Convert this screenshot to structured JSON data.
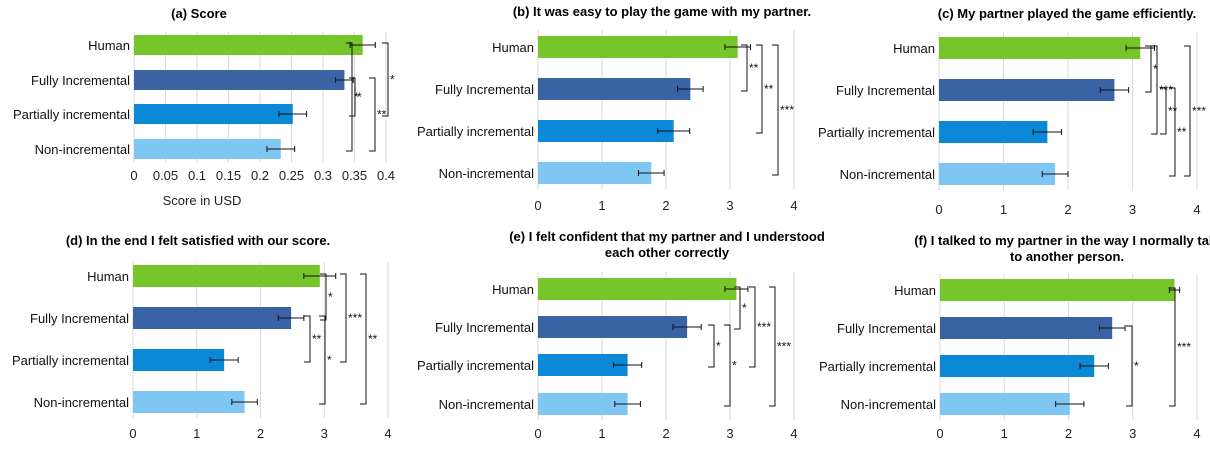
{
  "colors": {
    "Human": "#76c52b",
    "Fully Incremental": "#3a63a5",
    "Partially incremental": "#0b88d6",
    "Non-incremental": "#7fc6f3"
  },
  "chart_data": [
    {
      "type": "bar",
      "orientation": "horizontal",
      "title_lines": [
        "(a) Score"
      ],
      "xlabel": "Score in USD",
      "ylabel": "",
      "xlim": [
        0,
        0.4
      ],
      "ticks": [
        "0",
        "0.05",
        "0.1",
        "0.15",
        "0.2",
        "0.25",
        "0.3",
        "0.35",
        "0.4"
      ],
      "categories": [
        "Human",
        "Fully Incremental",
        "Partially incremental",
        "Non-incremental"
      ],
      "values": [
        0.363,
        0.334,
        0.252,
        0.233
      ],
      "errors": [
        0.02,
        0.014,
        0.022,
        0.022
      ],
      "significance": [
        {
          "between": [
            "Fully Incremental",
            "Partially incremental"
          ],
          "label": "*"
        },
        {
          "between": [
            "Fully Incremental",
            "Non-incremental"
          ],
          "label": "**"
        },
        {
          "between": [
            "Human",
            "Partially incremental"
          ],
          "label": "*"
        },
        {
          "between": [
            "Human",
            "Non-incremental"
          ],
          "label": "*"
        }
      ]
    },
    {
      "type": "bar",
      "orientation": "horizontal",
      "title_lines": [
        "(b) It was easy to play the game with my partner."
      ],
      "xlabel": "",
      "ylabel": "",
      "xlim": [
        0,
        4
      ],
      "ticks": [
        "0",
        "1",
        "2",
        "3",
        "4"
      ],
      "categories": [
        "Human",
        "Fully Incremental",
        "Partially incremental",
        "Non-incremental"
      ],
      "values": [
        3.12,
        2.38,
        2.12,
        1.77
      ],
      "errors": [
        0.2,
        0.2,
        0.25,
        0.2
      ],
      "significance": [
        {
          "between": [
            "Human",
            "Fully Incremental"
          ],
          "label": "**"
        },
        {
          "between": [
            "Human",
            "Partially incremental"
          ],
          "label": "**"
        },
        {
          "between": [
            "Human",
            "Non-incremental"
          ],
          "label": "***"
        }
      ]
    },
    {
      "type": "bar",
      "orientation": "horizontal",
      "title_lines": [
        "(c) My partner played the game efficiently."
      ],
      "xlabel": "",
      "ylabel": "",
      "xlim": [
        0,
        4
      ],
      "ticks": [
        "0",
        "1",
        "2",
        "3",
        "4"
      ],
      "categories": [
        "Human",
        "Fully Incremental",
        "Partially incremental",
        "Non-incremental"
      ],
      "values": [
        3.12,
        2.72,
        1.68,
        1.8
      ],
      "errors": [
        0.22,
        0.22,
        0.22,
        0.2
      ],
      "significance": [
        {
          "between": [
            "Human",
            "Fully Incremental"
          ],
          "label": "*"
        },
        {
          "between": [
            "Fully Incremental",
            "Partially incremental"
          ],
          "label": "**"
        },
        {
          "between": [
            "Fully Incremental",
            "Non-incremental"
          ],
          "label": "**"
        },
        {
          "between": [
            "Human",
            "Partially incremental"
          ],
          "label": "***"
        },
        {
          "between": [
            "Human",
            "Non-incremental"
          ],
          "label": "***"
        }
      ]
    },
    {
      "type": "bar",
      "orientation": "horizontal",
      "title_lines": [
        "(d) In the end I felt satisfied with our score."
      ],
      "xlabel": "",
      "ylabel": "",
      "xlim": [
        0,
        4
      ],
      "ticks": [
        "0",
        "1",
        "2",
        "3",
        "4"
      ],
      "categories": [
        "Human",
        "Fully Incremental",
        "Partially incremental",
        "Non-incremental"
      ],
      "values": [
        2.93,
        2.48,
        1.43,
        1.75
      ],
      "errors": [
        0.25,
        0.2,
        0.22,
        0.2
      ],
      "significance": [
        {
          "between": [
            "Human",
            "Fully Incremental"
          ],
          "label": "*"
        },
        {
          "between": [
            "Fully Incremental",
            "Partially incremental"
          ],
          "label": "**"
        },
        {
          "between": [
            "Fully Incremental",
            "Non-incremental"
          ],
          "label": "*"
        },
        {
          "between": [
            "Human",
            "Partially incremental"
          ],
          "label": "***"
        },
        {
          "between": [
            "Human",
            "Non-incremental"
          ],
          "label": "**"
        }
      ]
    },
    {
      "type": "bar",
      "orientation": "horizontal",
      "title_lines": [
        "(e) I felt confident that my partner and I understood",
        "each other correctly"
      ],
      "xlabel": "",
      "ylabel": "",
      "xlim": [
        0,
        4
      ],
      "ticks": [
        "0",
        "1",
        "2",
        "3",
        "4"
      ],
      "categories": [
        "Human",
        "Fully Incremental",
        "Partially incremental",
        "Non-incremental"
      ],
      "values": [
        3.1,
        2.33,
        1.4,
        1.4
      ],
      "errors": [
        0.18,
        0.22,
        0.22,
        0.2
      ],
      "significance": [
        {
          "between": [
            "Human",
            "Fully Incremental"
          ],
          "label": "*"
        },
        {
          "between": [
            "Fully Incremental",
            "Partially incremental"
          ],
          "label": "*"
        },
        {
          "between": [
            "Fully Incremental",
            "Non-incremental"
          ],
          "label": "*"
        },
        {
          "between": [
            "Human",
            "Partially incremental"
          ],
          "label": "***"
        },
        {
          "between": [
            "Human",
            "Non-incremental"
          ],
          "label": "***"
        }
      ]
    },
    {
      "type": "bar",
      "orientation": "horizontal",
      "title_lines": [
        "(f) I talked to my partner in the way I normally talk",
        "to another person."
      ],
      "xlabel": "",
      "ylabel": "",
      "xlim": [
        0,
        4
      ],
      "ticks": [
        "0",
        "1",
        "2",
        "3",
        "4"
      ],
      "categories": [
        "Human",
        "Fully Incremental",
        "Partially incremental",
        "Non-incremental"
      ],
      "values": [
        3.65,
        2.68,
        2.4,
        2.02
      ],
      "errors": [
        0.08,
        0.2,
        0.22,
        0.22
      ],
      "significance": [
        {
          "between": [
            "Fully Incremental",
            "Non-incremental"
          ],
          "label": "*"
        },
        {
          "between": [
            "Human",
            "Non-incremental"
          ],
          "label": "***"
        }
      ]
    }
  ]
}
